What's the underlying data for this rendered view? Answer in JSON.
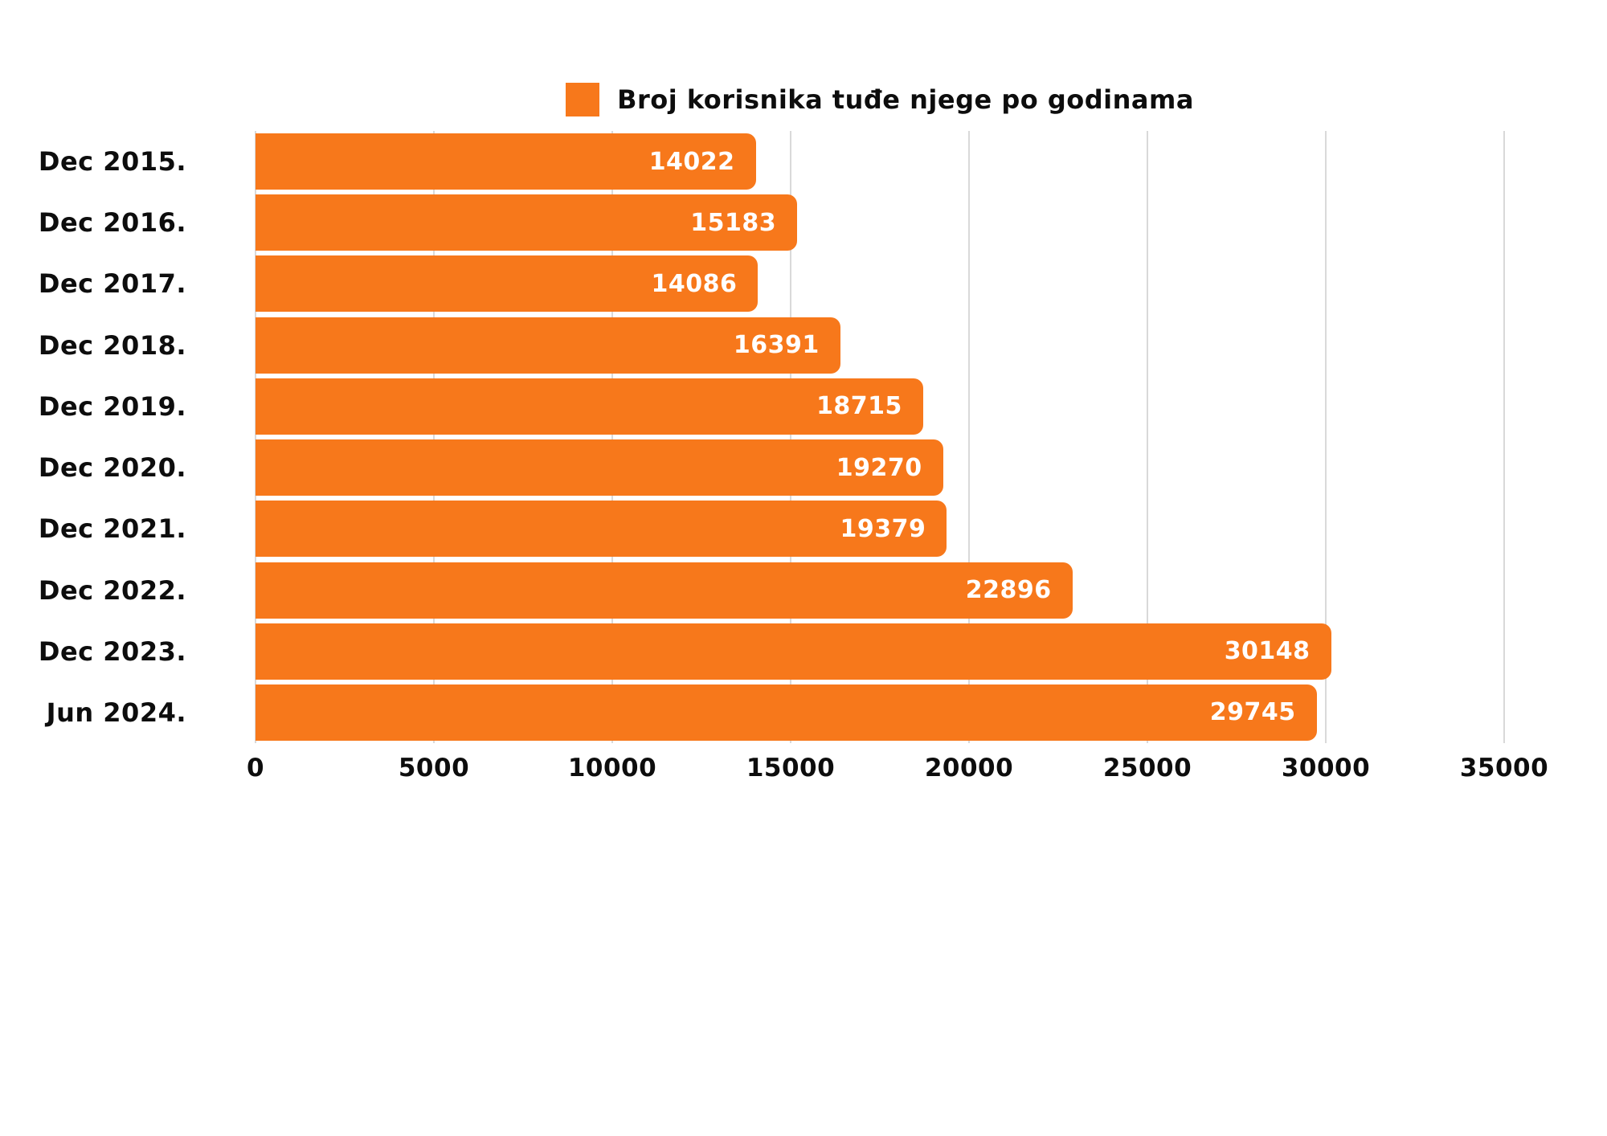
{
  "page": {
    "background": "#ffffff"
  },
  "legend": {
    "label": "Broj korisnika tuđe njege po godinama",
    "swatch_color": "#f7781b"
  },
  "chart_data": {
    "type": "bar",
    "orientation": "horizontal",
    "title": "Broj korisnika tuđe njege po godinama",
    "categories": [
      "Dec 2015.",
      "Dec 2016.",
      "Dec 2017.",
      "Dec 2018.",
      "Dec 2019.",
      "Dec 2020.",
      "Dec 2021.",
      "Dec 2022.",
      "Dec 2023.",
      "Jun 2024."
    ],
    "values": [
      14022,
      15183,
      14086,
      16391,
      18715,
      19270,
      19379,
      22896,
      30148,
      29745
    ],
    "xlabel": "",
    "ylabel": "",
    "xlim": [
      0,
      35000
    ],
    "x_ticks": [
      0,
      5000,
      10000,
      15000,
      20000,
      25000,
      30000,
      35000
    ],
    "grid": "vertical",
    "gridline_color": "#d9d9d9",
    "bar_color": "#f7781b",
    "value_label_color": "#ffffff",
    "text_color": "#0d0d0d",
    "legend_position": "top-center"
  }
}
